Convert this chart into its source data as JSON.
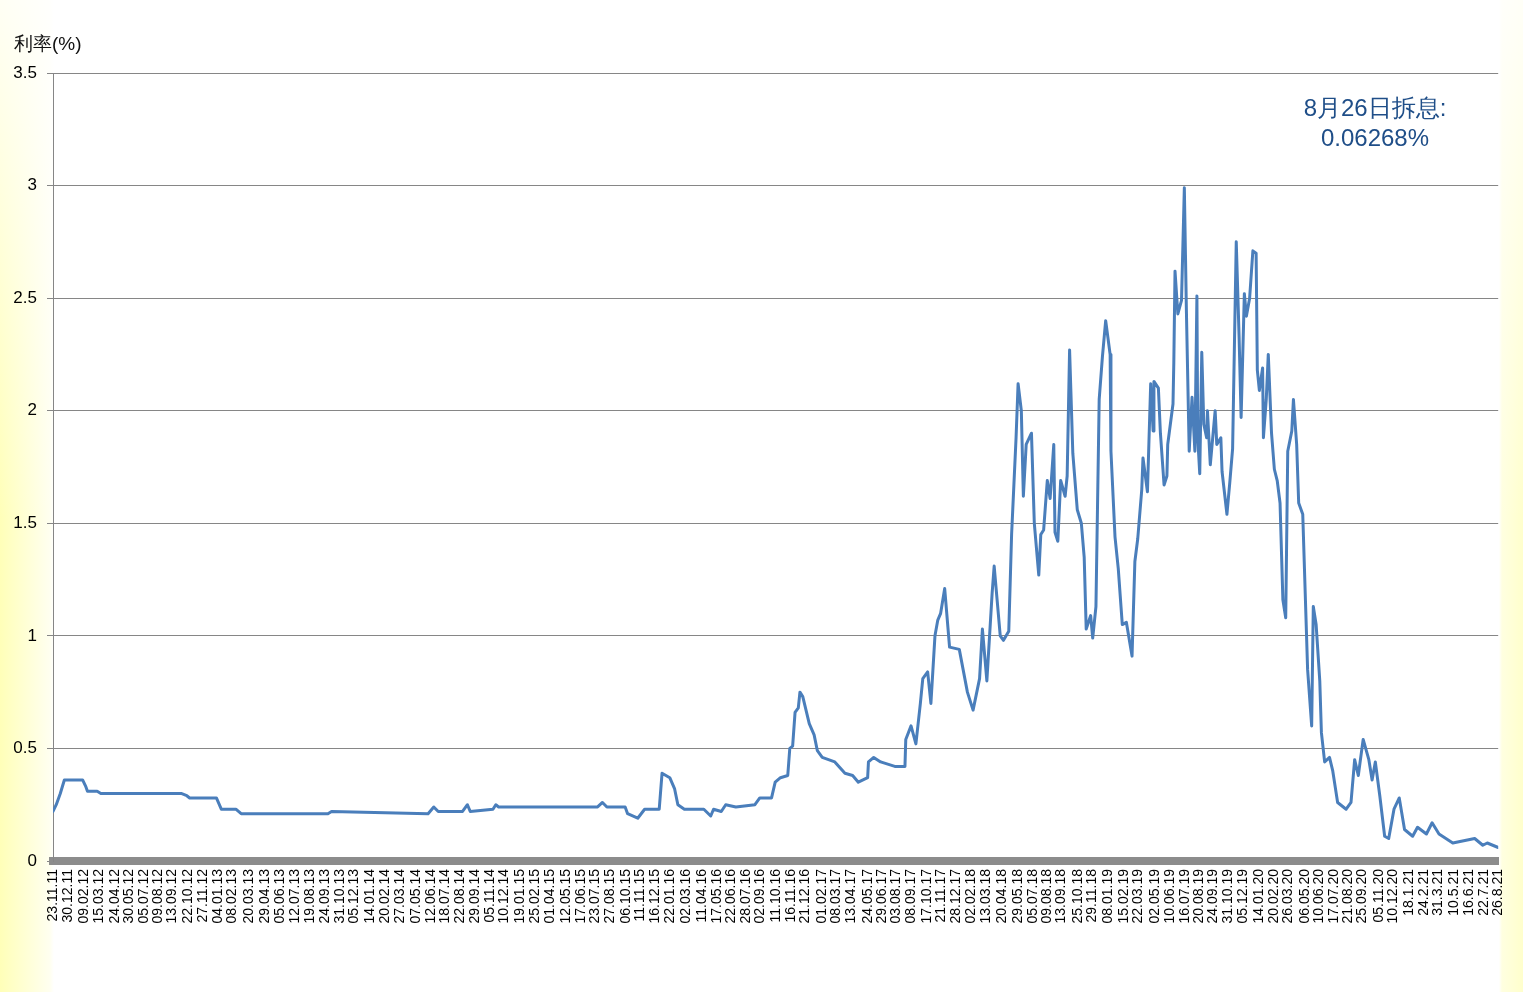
{
  "chart_data": {
    "type": "line",
    "ylabel": "利率(%)",
    "annotations": [
      "8月26日拆息: 0.06268%"
    ],
    "color": "#4a7ebb",
    "x": [
      "2011-11-23",
      "2011-12-01",
      "2011-12-11",
      "2011-12-21",
      "2012-02-04",
      "2012-02-12",
      "2012-02-16",
      "2012-03-11",
      "2012-03-20",
      "2012-10-04",
      "2012-10-18",
      "2012-10-25",
      "2012-12-30",
      "2013-01-11",
      "2013-02-16",
      "2013-03-01",
      "2013-10-01",
      "2013-10-10",
      "2014-06-05",
      "2014-06-19",
      "2014-06-30",
      "2014-08-29",
      "2014-09-10",
      "2014-09-17",
      "2014-11-12",
      "2014-11-19",
      "2014-11-26",
      "2015-07-28",
      "2015-08-09",
      "2015-08-20",
      "2015-10-04",
      "2015-10-10",
      "2015-11-04",
      "2015-11-21",
      "2015-12-27",
      "2016-01-03",
      "2016-01-22",
      "2016-02-03",
      "2016-02-11",
      "2016-02-27",
      "2016-04-15",
      "2016-05-02",
      "2016-05-09",
      "2016-05-28",
      "2016-06-08",
      "2016-07-03",
      "2016-08-19",
      "2016-08-31",
      "2016-09-29",
      "2016-10-08",
      "2016-10-21",
      "2016-11-08",
      "2016-11-13",
      "2016-11-20",
      "2016-11-26",
      "2016-12-04",
      "2016-12-08",
      "2016-12-15",
      "2016-12-31",
      "2017-01-12",
      "2017-01-20",
      "2017-02-01",
      "2017-03-04",
      "2017-03-29",
      "2017-04-17",
      "2017-05-01",
      "2017-05-24",
      "2017-05-26",
      "2017-06-08",
      "2017-06-25",
      "2017-07-30",
      "2017-08-24",
      "2017-08-26",
      "2017-09-08",
      "2017-09-20",
      "2017-10-01",
      "2017-10-07",
      "2017-10-19",
      "2017-10-27",
      "2017-11-06",
      "2017-11-13",
      "2017-11-20",
      "2017-11-30",
      "2017-12-12",
      "2018-01-05",
      "2018-01-25",
      "2018-02-08",
      "2018-02-24",
      "2018-03-03",
      "2018-03-14",
      "2018-03-27",
      "2018-04-01",
      "2018-04-16",
      "2018-04-24",
      "2018-05-07",
      "2018-05-14",
      "2018-05-25",
      "2018-05-30",
      "2018-06-07",
      "2018-06-12",
      "2018-06-19",
      "2018-07-02",
      "2018-07-09",
      "2018-07-20",
      "2018-07-25",
      "2018-08-01",
      "2018-08-10",
      "2018-08-17",
      "2018-08-26",
      "2018-08-29",
      "2018-09-05",
      "2018-09-12",
      "2018-09-23",
      "2018-09-28",
      "2018-10-04",
      "2018-10-12",
      "2018-10-23",
      "2018-11-02",
      "2018-11-09",
      "2018-11-14",
      "2018-11-25",
      "2018-11-30",
      "2018-12-08",
      "2018-12-16",
      "2018-12-24",
      "2019-01-01",
      "2019-01-12",
      "2019-01-14",
      "2019-01-24",
      "2019-02-01",
      "2019-02-11",
      "2019-02-21",
      "2019-03-07",
      "2019-03-14",
      "2019-03-21",
      "2019-03-31",
      "2019-04-03",
      "2019-04-14",
      "2019-04-22",
      "2019-04-28",
      "2019-04-30",
      "2019-05-11",
      "2019-05-16",
      "2019-05-25",
      "2019-06-01",
      "2019-06-03",
      "2019-06-16",
      "2019-06-18",
      "2019-06-21",
      "2019-06-28",
      "2019-07-07",
      "2019-07-14",
      "2019-07-19",
      "2019-07-26",
      "2019-08-02",
      "2019-08-09",
      "2019-08-14",
      "2019-08-16",
      "2019-08-21",
      "2019-08-26",
      "2019-08-31",
      "2019-09-07",
      "2019-09-09",
      "2019-09-16",
      "2019-09-28",
      "2019-10-02",
      "2019-10-12",
      "2019-10-15",
      "2019-10-27",
      "2019-11-03",
      "2019-11-10",
      "2019-11-19",
      "2019-11-26",
      "2019-12-01",
      "2019-12-09",
      "2019-12-14",
      "2019-12-22",
      "2019-12-30",
      "2020-01-07",
      "2020-01-10",
      "2020-01-15",
      "2020-01-23",
      "2020-01-25",
      "2020-02-01",
      "2020-02-06",
      "2020-02-14",
      "2020-02-21",
      "2020-02-28",
      "2020-03-06",
      "2020-03-13",
      "2020-03-20",
      "2020-03-25",
      "2020-04-04",
      "2020-04-08",
      "2020-04-16",
      "2020-04-21",
      "2020-05-01",
      "2020-05-13",
      "2020-05-23",
      "2020-05-27",
      "2020-06-03",
      "2020-06-12",
      "2020-06-16",
      "2020-06-24",
      "2020-07-06",
      "2020-07-14",
      "2020-07-26",
      "2020-08-16",
      "2020-08-28",
      "2020-09-06",
      "2020-09-15",
      "2020-09-27",
      "2020-10-11",
      "2020-10-19",
      "2020-10-27",
      "2020-11-07",
      "2020-11-19",
      "2020-11-29",
      "2020-12-12",
      "2020-12-25",
      "2021-01-07",
      "2021-01-27",
      "2021-02-08",
      "2021-03-02",
      "2021-03-16",
      "2021-04-02",
      "2021-05-06",
      "2021-06-29",
      "2021-07-19",
      "2021-07-30",
      "2021-08-26"
    ],
    "values": [
      0.22,
      0.25,
      0.3,
      0.36,
      0.36,
      0.33,
      0.31,
      0.31,
      0.3,
      0.3,
      0.29,
      0.28,
      0.28,
      0.23,
      0.23,
      0.21,
      0.21,
      0.22,
      0.21,
      0.24,
      0.22,
      0.22,
      0.25,
      0.22,
      0.23,
      0.25,
      0.24,
      0.24,
      0.26,
      0.24,
      0.24,
      0.21,
      0.19,
      0.23,
      0.23,
      0.39,
      0.37,
      0.32,
      0.25,
      0.23,
      0.23,
      0.2,
      0.23,
      0.22,
      0.25,
      0.24,
      0.25,
      0.28,
      0.28,
      0.35,
      0.37,
      0.38,
      0.5,
      0.51,
      0.66,
      0.68,
      0.75,
      0.73,
      0.61,
      0.56,
      0.49,
      0.46,
      0.44,
      0.39,
      0.38,
      0.35,
      0.37,
      0.44,
      0.46,
      0.44,
      0.42,
      0.42,
      0.54,
      0.6,
      0.52,
      0.7,
      0.81,
      0.84,
      0.7,
      1.0,
      1.07,
      1.1,
      1.21,
      0.95,
      0.94,
      0.75,
      0.67,
      0.81,
      1.03,
      0.8,
      1.19,
      1.31,
      1.0,
      0.98,
      1.02,
      1.45,
      1.88,
      2.12,
      2.0,
      1.62,
      1.85,
      1.9,
      1.5,
      1.27,
      1.45,
      1.47,
      1.69,
      1.61,
      1.85,
      1.46,
      1.42,
      1.69,
      1.62,
      1.71,
      2.27,
      1.81,
      1.56,
      1.5,
      1.35,
      1.03,
      1.09,
      0.99,
      1.13,
      2.05,
      2.24,
      2.4,
      2.25,
      1.82,
      1.44,
      1.3,
      1.05,
      1.06,
      0.91,
      1.33,
      1.43,
      1.65,
      1.79,
      1.64,
      2.12,
      1.91,
      2.13,
      2.1,
      1.9,
      1.67,
      1.71,
      1.85,
      2.03,
      2.21,
      2.62,
      2.43,
      2.49,
      2.99,
      2.45,
      1.82,
      2.06,
      1.82,
      2.51,
      1.88,
      1.72,
      2.26,
      1.94,
      1.88,
      2.0,
      1.76,
      2.0,
      1.85,
      1.88,
      1.73,
      1.54,
      1.68,
      1.83,
      2.75,
      2.33,
      1.97,
      2.52,
      2.42,
      2.5,
      2.71,
      2.7,
      2.18,
      2.09,
      2.19,
      1.88,
      2.05,
      2.25,
      1.9,
      1.74,
      1.69,
      1.59,
      1.16,
      1.08,
      1.82,
      1.91,
      2.05,
      1.85,
      1.59,
      1.54,
      0.85,
      0.6,
      1.13,
      1.05,
      0.8,
      0.57,
      0.44,
      0.46,
      0.4,
      0.26,
      0.23,
      0.26,
      0.45,
      0.38,
      0.54,
      0.45,
      0.36,
      0.44,
      0.29,
      0.11,
      0.1,
      0.23,
      0.28,
      0.14,
      0.11,
      0.15,
      0.12,
      0.17,
      0.12,
      0.08,
      0.1,
      0.07,
      0.08,
      0.06
    ],
    "xlim": [
      "2011-11-23",
      "2021-08-26"
    ],
    "xticks": [
      {
        "value": "2011-11-23",
        "label": "23.11.11"
      },
      {
        "value": "2011-12-30",
        "label": "30.12.11"
      },
      {
        "value": "2012-02-09",
        "label": "09.02.12"
      },
      {
        "value": "2012-03-15",
        "label": "15.03.12"
      },
      {
        "value": "2012-04-24",
        "label": "24.04.12"
      },
      {
        "value": "2012-05-30",
        "label": "30.05.12"
      },
      {
        "value": "2012-07-05",
        "label": "05.07.12"
      },
      {
        "value": "2012-08-09",
        "label": "09.08.12"
      },
      {
        "value": "2012-09-13",
        "label": "13.09.12"
      },
      {
        "value": "2012-10-22",
        "label": "22.10.12"
      },
      {
        "value": "2012-11-27",
        "label": "27.11.12"
      },
      {
        "value": "2013-01-04",
        "label": "04.01.13"
      },
      {
        "value": "2013-02-08",
        "label": "08.02.13"
      },
      {
        "value": "2013-03-20",
        "label": "20.03.13"
      },
      {
        "value": "2013-04-29",
        "label": "29.04.13"
      },
      {
        "value": "2013-06-05",
        "label": "05.06.13"
      },
      {
        "value": "2013-07-12",
        "label": "12.07.13"
      },
      {
        "value": "2013-08-19",
        "label": "19.08.13"
      },
      {
        "value": "2013-09-24",
        "label": "24.09.13"
      },
      {
        "value": "2013-10-31",
        "label": "31.10.13"
      },
      {
        "value": "2013-12-05",
        "label": "05.12.13"
      },
      {
        "value": "2014-01-14",
        "label": "14.01.14"
      },
      {
        "value": "2014-02-20",
        "label": "20.02.14"
      },
      {
        "value": "2014-03-27",
        "label": "27.03.14"
      },
      {
        "value": "2014-05-07",
        "label": "07.05.14"
      },
      {
        "value": "2014-06-12",
        "label": "12.06.14"
      },
      {
        "value": "2014-07-18",
        "label": "18.07.14"
      },
      {
        "value": "2014-08-22",
        "label": "22.08.14"
      },
      {
        "value": "2014-09-29",
        "label": "29.09.14"
      },
      {
        "value": "2014-11-05",
        "label": "05.11.14"
      },
      {
        "value": "2014-12-10",
        "label": "10.12.14"
      },
      {
        "value": "2015-01-19",
        "label": "19.01.15"
      },
      {
        "value": "2015-02-25",
        "label": "25.02.15"
      },
      {
        "value": "2015-04-01",
        "label": "01.04.15"
      },
      {
        "value": "2015-05-12",
        "label": "12.05.15"
      },
      {
        "value": "2015-06-17",
        "label": "17.06.15"
      },
      {
        "value": "2015-07-23",
        "label": "23.07.15"
      },
      {
        "value": "2015-08-27",
        "label": "27.08.15"
      },
      {
        "value": "2015-10-06",
        "label": "06.10.15"
      },
      {
        "value": "2015-11-11",
        "label": "11.11.15"
      },
      {
        "value": "2015-12-16",
        "label": "16.12.15"
      },
      {
        "value": "2016-01-22",
        "label": "22.01.16"
      },
      {
        "value": "2016-03-02",
        "label": "02.03.16"
      },
      {
        "value": "2016-04-11",
        "label": "11.04.16"
      },
      {
        "value": "2016-05-17",
        "label": "17.05.16"
      },
      {
        "value": "2016-06-22",
        "label": "22.06.16"
      },
      {
        "value": "2016-07-28",
        "label": "28.07.16"
      },
      {
        "value": "2016-09-02",
        "label": "02.09.16"
      },
      {
        "value": "2016-10-11",
        "label": "11.10.16"
      },
      {
        "value": "2016-11-16",
        "label": "16.11.16"
      },
      {
        "value": "2016-12-21",
        "label": "21.12.16"
      },
      {
        "value": "2017-02-01",
        "label": "01.02.17"
      },
      {
        "value": "2017-03-08",
        "label": "08.03.17"
      },
      {
        "value": "2017-04-13",
        "label": "13.04.17"
      },
      {
        "value": "2017-05-24",
        "label": "24.05.17"
      },
      {
        "value": "2017-06-29",
        "label": "29.06.17"
      },
      {
        "value": "2017-08-03",
        "label": "03.08.17"
      },
      {
        "value": "2017-09-08",
        "label": "08.09.17"
      },
      {
        "value": "2017-10-17",
        "label": "17.10.17"
      },
      {
        "value": "2017-11-21",
        "label": "21.11.17"
      },
      {
        "value": "2017-12-28",
        "label": "28.12.17"
      },
      {
        "value": "2018-02-02",
        "label": "02.02.18"
      },
      {
        "value": "2018-03-13",
        "label": "13.03.18"
      },
      {
        "value": "2018-04-20",
        "label": "20.04.18"
      },
      {
        "value": "2018-05-29",
        "label": "29.05.18"
      },
      {
        "value": "2018-07-05",
        "label": "05.07.18"
      },
      {
        "value": "2018-08-09",
        "label": "09.08.18"
      },
      {
        "value": "2018-09-13",
        "label": "13.09.18"
      },
      {
        "value": "2018-10-25",
        "label": "25.10.18"
      },
      {
        "value": "2018-11-29",
        "label": "29.11.18"
      },
      {
        "value": "2019-01-08",
        "label": "08.01.19"
      },
      {
        "value": "2019-02-15",
        "label": "15.02.19"
      },
      {
        "value": "2019-03-22",
        "label": "22.03.19"
      },
      {
        "value": "2019-05-02",
        "label": "02.05.19"
      },
      {
        "value": "2019-06-10",
        "label": "10.06.19"
      },
      {
        "value": "2019-07-16",
        "label": "16.07.19"
      },
      {
        "value": "2019-08-20",
        "label": "20.08.19"
      },
      {
        "value": "2019-09-24",
        "label": "24.09.19"
      },
      {
        "value": "2019-10-31",
        "label": "31.10.19"
      },
      {
        "value": "2019-12-05",
        "label": "05.12.19"
      },
      {
        "value": "2020-01-14",
        "label": "14.01.20"
      },
      {
        "value": "2020-02-20",
        "label": "20.02.20"
      },
      {
        "value": "2020-03-26",
        "label": "26.03.20"
      },
      {
        "value": "2020-05-06",
        "label": "06.05.20"
      },
      {
        "value": "2020-06-10",
        "label": "10.06.20"
      },
      {
        "value": "2020-07-17",
        "label": "17.07.20"
      },
      {
        "value": "2020-08-21",
        "label": "21.08.20"
      },
      {
        "value": "2020-09-25",
        "label": "25.09.20"
      },
      {
        "value": "2020-11-05",
        "label": "05.11.20"
      },
      {
        "value": "2020-12-10",
        "label": "10.12.20"
      },
      {
        "value": "2021-01-18",
        "label": "18.1.21"
      },
      {
        "value": "2021-02-24",
        "label": "24.2.21"
      },
      {
        "value": "2021-03-31",
        "label": "31.3.21"
      },
      {
        "value": "2021-05-10",
        "label": "10.5.21"
      },
      {
        "value": "2021-06-16",
        "label": "16.6.21"
      },
      {
        "value": "2021-07-22",
        "label": "22.7.21"
      },
      {
        "value": "2021-08-26",
        "label": "26.8.21"
      }
    ],
    "ylim": [
      0,
      3.5
    ],
    "yticks": [
      0,
      0.5,
      1,
      1.5,
      2,
      2.5,
      3,
      3.5
    ],
    "grid": "y"
  }
}
